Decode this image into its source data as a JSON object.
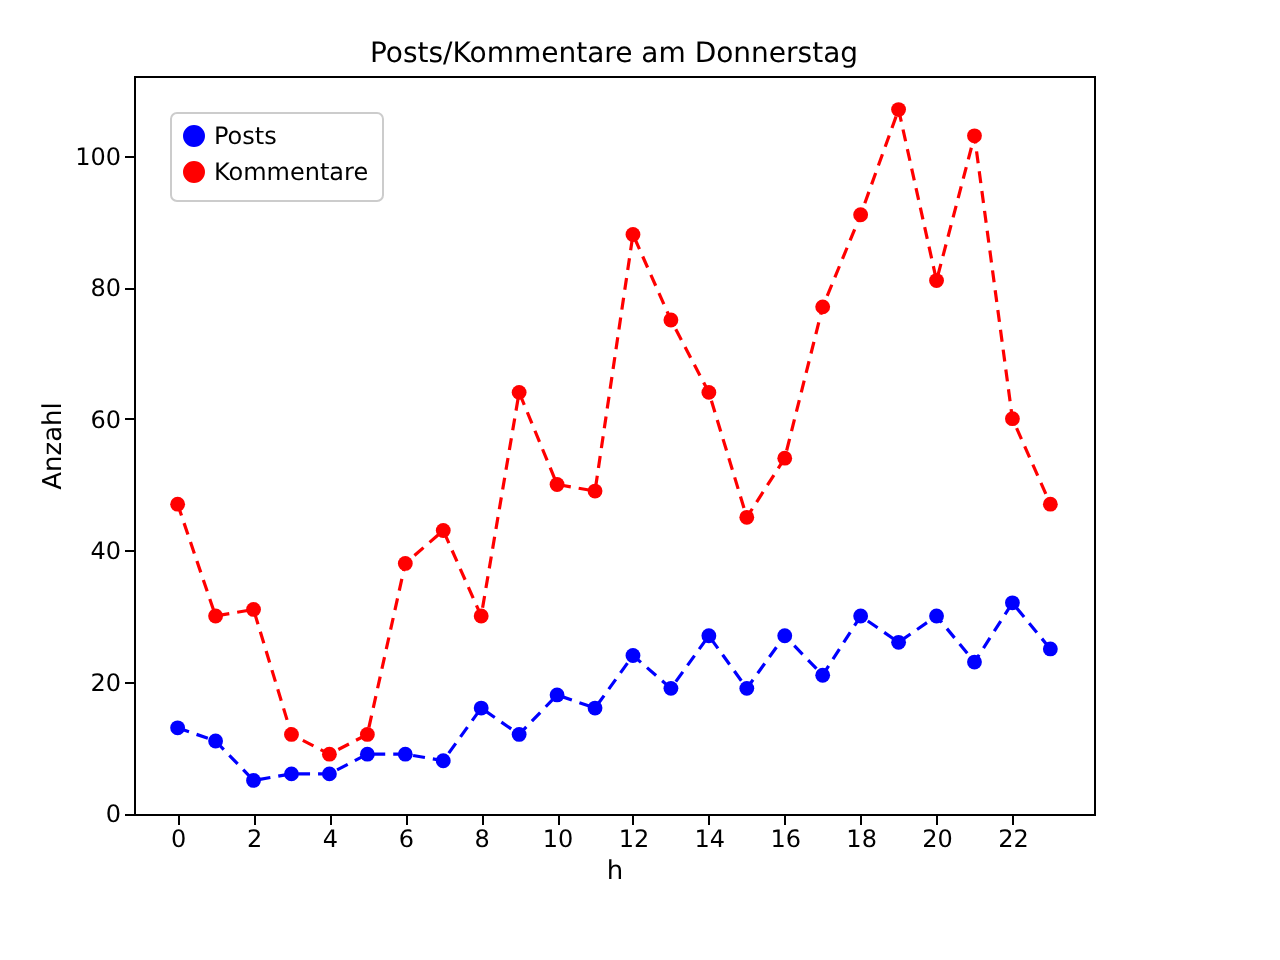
{
  "chart_data": {
    "type": "line",
    "title": "Posts/Kommentare am Donnerstag",
    "xlabel": "h",
    "ylabel": "Anzahl",
    "x": [
      0,
      1,
      2,
      3,
      4,
      5,
      6,
      7,
      8,
      9,
      10,
      11,
      12,
      13,
      14,
      15,
      16,
      17,
      18,
      19,
      20,
      21,
      22,
      23
    ],
    "series": [
      {
        "name": "Posts",
        "color": "#0000ff",
        "values": [
          13,
          11,
          5,
          6,
          6,
          9,
          9,
          8,
          16,
          12,
          18,
          16,
          24,
          19,
          27,
          19,
          27,
          21,
          30,
          26,
          30,
          23,
          32,
          25
        ]
      },
      {
        "name": "Kommentare",
        "color": "#ff0000",
        "values": [
          47,
          30,
          31,
          12,
          9,
          12,
          38,
          43,
          30,
          64,
          50,
          49,
          88,
          75,
          64,
          45,
          54,
          77,
          91,
          107,
          81,
          103,
          60,
          47
        ]
      }
    ],
    "xlim": [
      -1.15,
      24.15
    ],
    "xticks": [
      0,
      2,
      4,
      6,
      8,
      10,
      12,
      14,
      16,
      18,
      20,
      22
    ],
    "ylim": [
      -0.1,
      112.1
    ],
    "yticks": [
      0,
      20,
      40,
      60,
      80,
      100
    ],
    "marker": "circle",
    "line_style": "dashed",
    "legend": "top left",
    "grid": false
  }
}
